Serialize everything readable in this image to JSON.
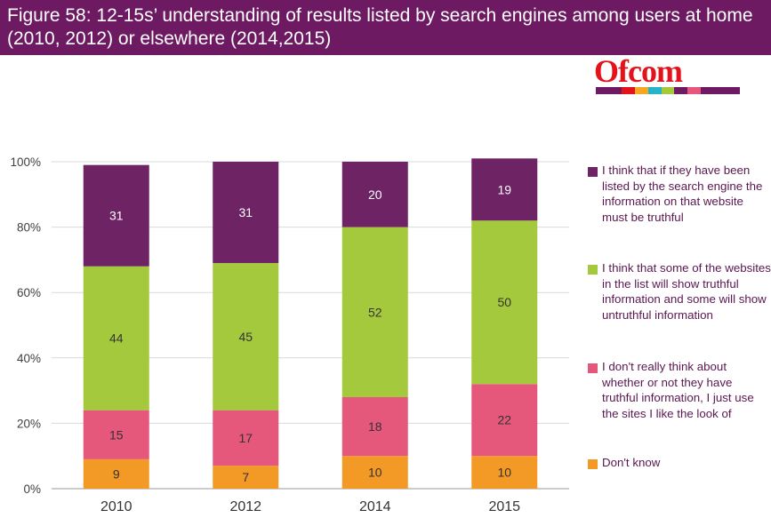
{
  "header": {
    "title": "Figure 58: 12-15s’ understanding of results listed by search engines among users at home (2010, 2012) or elsewhere (2014,2015)"
  },
  "logo": {
    "text": "Ofcom",
    "text_color": "#e3131c",
    "stripe_colors": [
      "#6d1a63",
      "#6d1a63",
      "#e3131c",
      "#f7a823",
      "#27b4c8",
      "#a5c93c",
      "#6d1a63",
      "#e5587b",
      "#6d1a63",
      "#6d1a63",
      "#6d1a63"
    ]
  },
  "chart_data": {
    "type": "bar",
    "stacked": true,
    "categories": [
      "2010",
      "2012",
      "2014",
      "2015"
    ],
    "y_ticks": [
      "0%",
      "20%",
      "40%",
      "60%",
      "80%",
      "100%"
    ],
    "ylim": [
      0,
      100
    ],
    "grid": true,
    "legend_position": "right",
    "series": [
      {
        "name": "Don't know",
        "values": [
          9,
          7,
          10,
          10
        ],
        "color": "#f39a26"
      },
      {
        "name": "I don't really think about whether or not they have truthful information, I just use the sites I like the look of",
        "values": [
          15,
          17,
          18,
          22
        ],
        "color": "#e5587b"
      },
      {
        "name": "I think that some of the websites in the list will show truthful information and some will show untruthful information",
        "values": [
          44,
          45,
          52,
          50
        ],
        "color": "#a5c93c"
      },
      {
        "name": "I think that if they have been listed by the search engine the information on that website must be truthful",
        "values": [
          31,
          31,
          20,
          19
        ],
        "color": "#6d2364"
      }
    ]
  }
}
